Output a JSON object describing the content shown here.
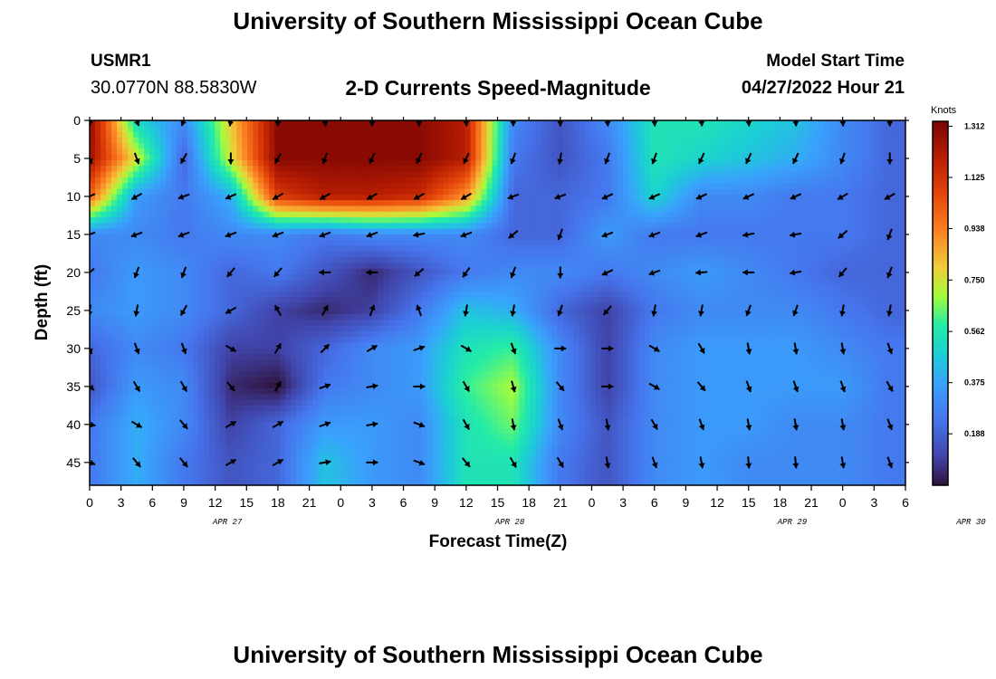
{
  "header": {
    "title": "University of Southern Mississippi Ocean Cube",
    "station": "USMR1",
    "coords": "30.0770N  88.5830W",
    "subtitle": "2-D Currents Speed-Magnitude",
    "model_label": "Model Start Time",
    "model_time": "04/27/2022 Hour 21"
  },
  "footer": {
    "title": "University of Southern Mississippi Ocean Cube"
  },
  "chart_data": {
    "type": "heatmap",
    "xlabel": "Forecast Time(Z)",
    "ylabel": "Depth (ft)",
    "x_tick_labels": [
      "0",
      "3",
      "6",
      "9",
      "12",
      "15",
      "18",
      "21",
      "0",
      "3",
      "6",
      "9",
      "12",
      "15",
      "18",
      "21",
      "0",
      "3",
      "6",
      "9",
      "12",
      "15",
      "18",
      "21",
      "0",
      "3",
      "6"
    ],
    "date_labels": [
      {
        "label": "APR 27",
        "hour_index": 4.5
      },
      {
        "label": "APR 28",
        "hour_index": 13.5
      },
      {
        "label": "APR 29",
        "hour_index": 22.5
      },
      {
        "label": "APR 30",
        "hour_index": 28.2
      }
    ],
    "y_ticks": [
      0,
      5,
      10,
      15,
      20,
      25,
      30,
      35,
      40,
      45
    ],
    "ylim": [
      48,
      0
    ],
    "xlim": [
      0,
      78
    ],
    "colorbar": {
      "unit": "Knots",
      "ticks": [
        "1.312",
        "1.125",
        "0.938",
        "0.750",
        "0.562",
        "0.375",
        "0.188"
      ],
      "tick_values": [
        1.312,
        1.125,
        0.938,
        0.75,
        0.562,
        0.375,
        0.188
      ],
      "range": [
        0,
        1.33
      ]
    },
    "columns_hours": [
      0,
      4.5,
      9,
      13.5,
      18,
      22.5,
      27,
      31.5,
      36,
      40.5,
      45,
      49.5,
      54,
      58.5,
      63,
      67.5,
      72,
      76.5
    ],
    "rows_depth": [
      0,
      5,
      10,
      15,
      20,
      25,
      30,
      35,
      40,
      45
    ],
    "speed_knots": [
      [
        1.3,
        0.5,
        0.3,
        0.8,
        1.3,
        1.3,
        1.3,
        1.3,
        1.2,
        0.3,
        0.15,
        0.3,
        0.55,
        0.55,
        0.5,
        0.45,
        0.3,
        0.2
      ],
      [
        1.25,
        0.75,
        0.2,
        0.75,
        1.3,
        1.3,
        1.3,
        1.3,
        1.2,
        0.25,
        0.15,
        0.25,
        0.55,
        0.5,
        0.45,
        0.4,
        0.3,
        0.2
      ],
      [
        1.0,
        0.35,
        0.25,
        0.4,
        1.1,
        1.2,
        1.2,
        1.15,
        0.9,
        0.2,
        0.2,
        0.25,
        0.5,
        0.3,
        0.3,
        0.25,
        0.25,
        0.2
      ],
      [
        0.3,
        0.3,
        0.25,
        0.3,
        0.3,
        0.25,
        0.3,
        0.3,
        0.3,
        0.2,
        0.2,
        0.35,
        0.25,
        0.25,
        0.25,
        0.25,
        0.25,
        0.2
      ],
      [
        0.25,
        0.35,
        0.3,
        0.2,
        0.25,
        0.15,
        0.05,
        0.15,
        0.25,
        0.3,
        0.3,
        0.25,
        0.3,
        0.35,
        0.3,
        0.25,
        0.2,
        0.2
      ],
      [
        0.3,
        0.35,
        0.3,
        0.2,
        0.1,
        0.05,
        0.1,
        0.25,
        0.45,
        0.4,
        0.2,
        0.1,
        0.25,
        0.3,
        0.3,
        0.3,
        0.25,
        0.2
      ],
      [
        0.2,
        0.3,
        0.25,
        0.1,
        0.1,
        0.2,
        0.3,
        0.35,
        0.55,
        0.6,
        0.3,
        0.1,
        0.3,
        0.35,
        0.35,
        0.35,
        0.3,
        0.25
      ],
      [
        0.15,
        0.35,
        0.3,
        0.05,
        0.0,
        0.25,
        0.3,
        0.35,
        0.6,
        0.7,
        0.3,
        0.1,
        0.3,
        0.35,
        0.35,
        0.35,
        0.35,
        0.25
      ],
      [
        0.25,
        0.4,
        0.3,
        0.1,
        0.2,
        0.35,
        0.35,
        0.3,
        0.55,
        0.65,
        0.3,
        0.15,
        0.3,
        0.35,
        0.35,
        0.3,
        0.3,
        0.25
      ],
      [
        0.25,
        0.4,
        0.25,
        0.15,
        0.2,
        0.45,
        0.35,
        0.3,
        0.55,
        0.55,
        0.25,
        0.15,
        0.3,
        0.35,
        0.3,
        0.3,
        0.3,
        0.25
      ]
    ],
    "arrow_direction_deg": [
      [
        180,
        160,
        200,
        190,
        180,
        175,
        180,
        180,
        175,
        180,
        180,
        175,
        175,
        175,
        175,
        175,
        175,
        180
      ],
      [
        155,
        160,
        210,
        180,
        210,
        200,
        205,
        205,
        205,
        200,
        190,
        200,
        200,
        205,
        205,
        205,
        200,
        180
      ],
      [
        245,
        240,
        250,
        245,
        240,
        240,
        240,
        240,
        240,
        250,
        250,
        245,
        245,
        245,
        245,
        245,
        240,
        240
      ],
      [
        250,
        250,
        250,
        250,
        250,
        250,
        250,
        260,
        250,
        230,
        200,
        250,
        250,
        250,
        260,
        260,
        230,
        200
      ],
      [
        230,
        200,
        200,
        220,
        220,
        270,
        270,
        230,
        215,
        200,
        180,
        245,
        250,
        265,
        270,
        260,
        220,
        200
      ],
      [
        190,
        190,
        210,
        240,
        330,
        30,
        20,
        340,
        190,
        190,
        200,
        220,
        190,
        190,
        200,
        200,
        190,
        190
      ],
      [
        160,
        160,
        160,
        120,
        30,
        45,
        60,
        70,
        120,
        160,
        90,
        90,
        120,
        150,
        170,
        170,
        170,
        160
      ],
      [
        130,
        150,
        150,
        140,
        30,
        70,
        80,
        90,
        150,
        165,
        140,
        90,
        120,
        140,
        160,
        160,
        160,
        150
      ],
      [
        100,
        120,
        140,
        60,
        60,
        70,
        80,
        110,
        150,
        170,
        160,
        170,
        150,
        160,
        170,
        170,
        170,
        160
      ],
      [
        110,
        140,
        140,
        60,
        60,
        80,
        90,
        110,
        140,
        150,
        150,
        170,
        160,
        170,
        175,
        175,
        170,
        160
      ]
    ]
  }
}
